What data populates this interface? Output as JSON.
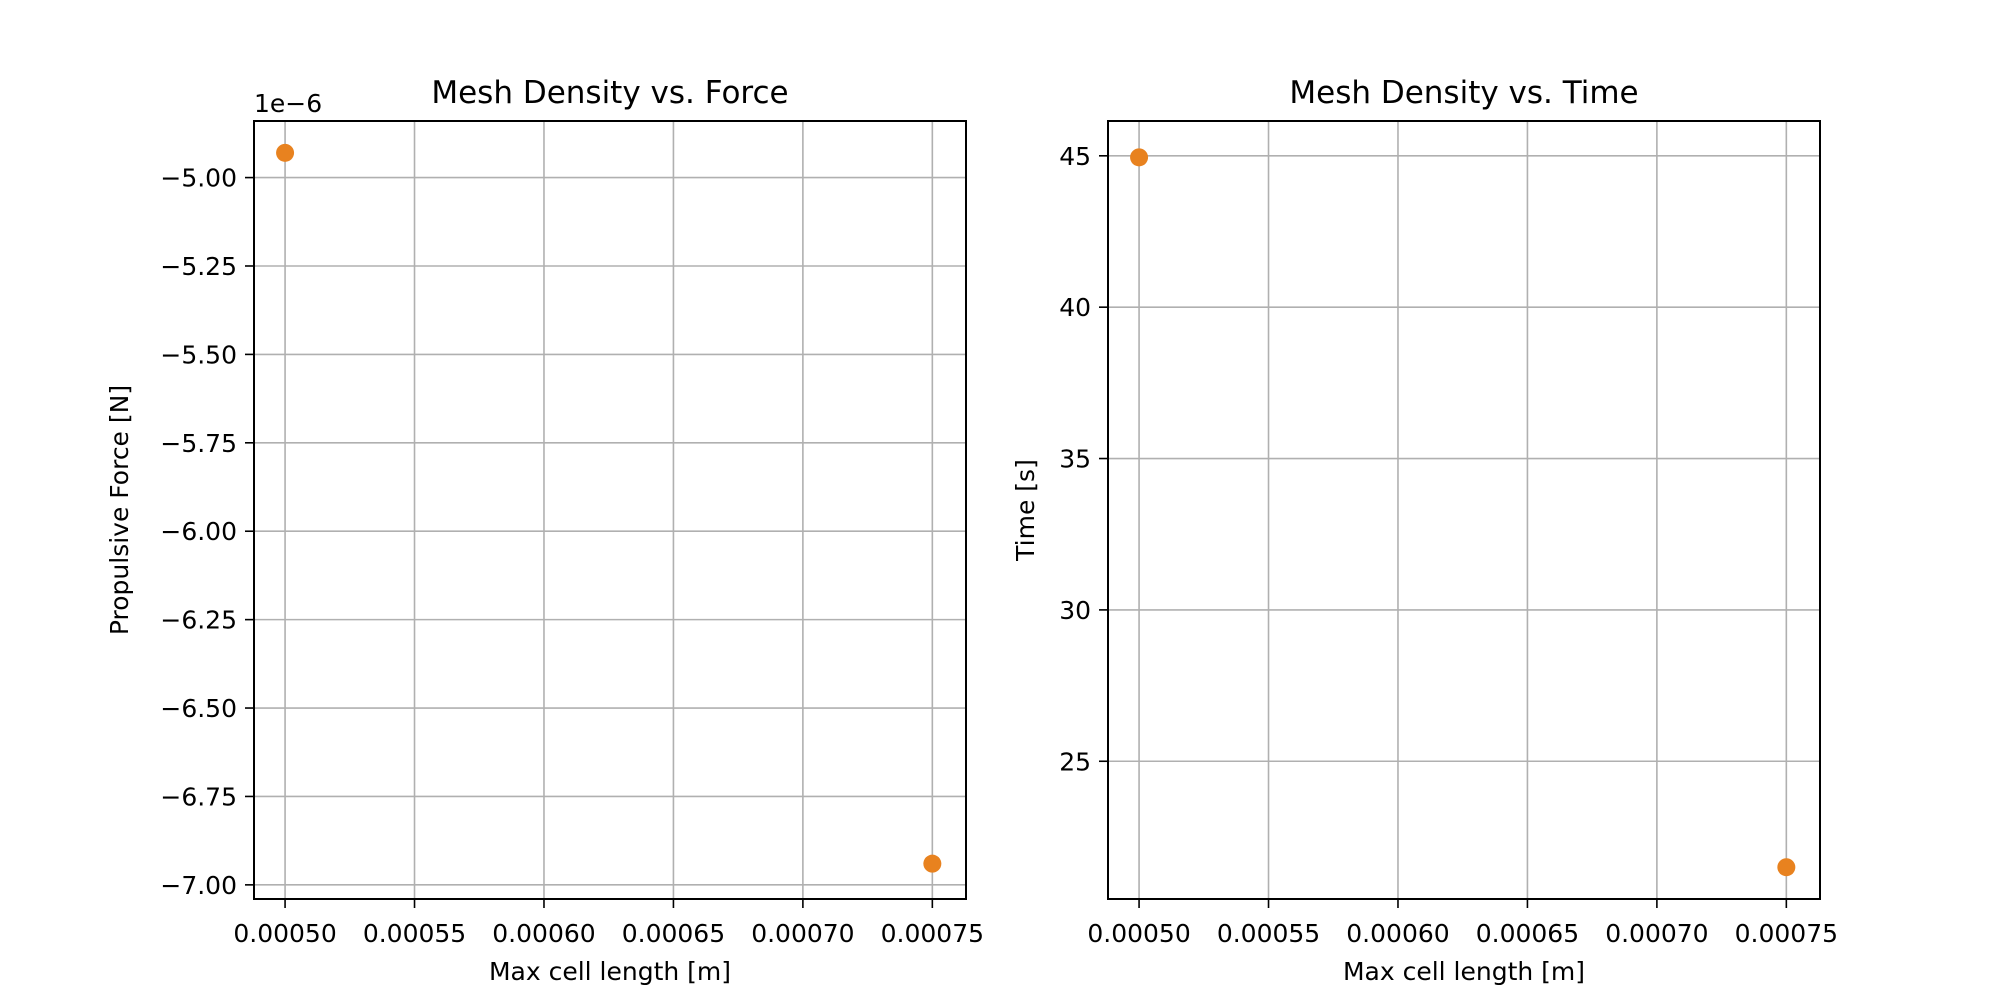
{
  "chart_data": [
    {
      "type": "scatter",
      "title": "Mesh Density vs. Force",
      "xlabel": "Max cell length [m]",
      "ylabel": "Propulsive Force [N]",
      "y_offset_label": "1e−6",
      "xlim": [
        0.000488,
        0.000763
      ],
      "ylim": [
        -7.04,
        -4.84
      ],
      "xticks": [
        0.0005,
        0.00055,
        0.0006,
        0.00065,
        0.0007,
        0.00075
      ],
      "xtick_labels": [
        "0.00050",
        "0.00055",
        "0.00060",
        "0.00065",
        "0.00070",
        "0.00075"
      ],
      "yticks": [
        -5.0,
        -5.25,
        -5.5,
        -5.75,
        -6.0,
        -6.25,
        -6.5,
        -6.75,
        -7.0
      ],
      "ytick_labels": [
        "−5.00",
        "−5.25",
        "−5.50",
        "−5.75",
        "−6.00",
        "−6.25",
        "−6.50",
        "−6.75",
        "−7.00"
      ],
      "grid": true,
      "series": [
        {
          "color": "#e8821f",
          "points": [
            {
              "x": 0.0005,
              "y": -4.93
            },
            {
              "x": 0.00075,
              "y": -6.94
            }
          ]
        }
      ]
    },
    {
      "type": "scatter",
      "title": "Mesh Density vs. Time",
      "xlabel": "Max cell length [m]",
      "ylabel": "Time [s]",
      "xlim": [
        0.000488,
        0.000763
      ],
      "ylim": [
        20.45,
        46.15
      ],
      "xticks": [
        0.0005,
        0.00055,
        0.0006,
        0.00065,
        0.0007,
        0.00075
      ],
      "xtick_labels": [
        "0.00050",
        "0.00055",
        "0.00060",
        "0.00065",
        "0.00070",
        "0.00075"
      ],
      "yticks": [
        25,
        30,
        35,
        40,
        45
      ],
      "ytick_labels": [
        "25",
        "30",
        "35",
        "40",
        "45"
      ],
      "grid": true,
      "series": [
        {
          "color": "#e8821f",
          "points": [
            {
              "x": 0.0005,
              "y": 44.95
            },
            {
              "x": 0.00075,
              "y": 21.5
            }
          ]
        }
      ]
    }
  ]
}
